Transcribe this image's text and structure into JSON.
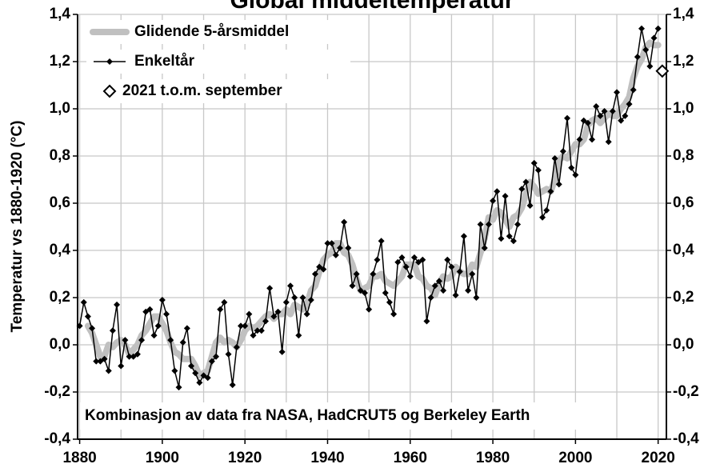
{
  "chart_data": {
    "type": "line",
    "title": "Global middeltemperatur",
    "y_label": "Temperatur vs 1880-1920 (°C)",
    "annotation": "Kombinasjon av data fra NASA, HadCRUT5 og Berkeley Earth",
    "xlim": [
      1879.5,
      2022
    ],
    "xticks": [
      1880,
      1900,
      1920,
      1940,
      1960,
      1980,
      2000,
      2020
    ],
    "xminorticks": [
      1890,
      1910,
      1930,
      1950,
      1970,
      1990,
      2010
    ],
    "ylim": [
      -0.4,
      1.4
    ],
    "yticks": [
      {
        "value": -0.4,
        "label": "-0,4"
      },
      {
        "value": -0.2,
        "label": "-0,2"
      },
      {
        "value": 0,
        "label": "0,0"
      },
      {
        "value": 0.2,
        "label": "0,2"
      },
      {
        "value": 0.4,
        "label": "0,4"
      },
      {
        "value": 0.6,
        "label": "0,6"
      },
      {
        "value": 0.8,
        "label": "0,8"
      },
      {
        "value": 1.0,
        "label": "1,0"
      },
      {
        "value": 1.2,
        "label": "1,2"
      },
      {
        "value": 1.4,
        "label": "1,4"
      }
    ],
    "y2lim": [
      -0.4,
      1.4
    ],
    "y2ticks": [
      {
        "value": -0.4,
        "label": "-0,4"
      },
      {
        "value": -0.2,
        "label": "-0,2"
      },
      {
        "value": 0,
        "label": "0,0"
      },
      {
        "value": 0.2,
        "label": "0,2"
      },
      {
        "value": 0.4,
        "label": "0,4"
      },
      {
        "value": 0.6,
        "label": "0,6"
      },
      {
        "value": 0.8,
        "label": "0,8"
      },
      {
        "value": 1.0,
        "label": "1,0"
      },
      {
        "value": 1.2,
        "label": "1,2"
      },
      {
        "value": 1.4,
        "label": "1,4"
      }
    ],
    "grid": true,
    "legend": "upper left",
    "series": [
      {
        "name": "Glidende 5-årsmiddel",
        "color": "#c0c0c0",
        "style": "thick",
        "x": [
          1882,
          1883,
          1884,
          1885,
          1886,
          1887,
          1888,
          1889,
          1890,
          1891,
          1892,
          1893,
          1894,
          1895,
          1896,
          1897,
          1898,
          1899,
          1900,
          1901,
          1902,
          1903,
          1904,
          1905,
          1906,
          1907,
          1908,
          1909,
          1910,
          1911,
          1912,
          1913,
          1914,
          1915,
          1916,
          1917,
          1918,
          1919,
          1920,
          1921,
          1922,
          1923,
          1924,
          1925,
          1926,
          1927,
          1928,
          1929,
          1930,
          1931,
          1932,
          1933,
          1934,
          1935,
          1936,
          1937,
          1938,
          1939,
          1940,
          1941,
          1942,
          1943,
          1944,
          1945,
          1946,
          1947,
          1948,
          1949,
          1950,
          1951,
          1952,
          1953,
          1954,
          1955,
          1956,
          1957,
          1958,
          1959,
          1960,
          1961,
          1962,
          1963,
          1964,
          1965,
          1966,
          1967,
          1968,
          1969,
          1970,
          1971,
          1972,
          1973,
          1974,
          1975,
          1976,
          1977,
          1978,
          1979,
          1980,
          1981,
          1982,
          1983,
          1984,
          1985,
          1986,
          1987,
          1988,
          1989,
          1990,
          1991,
          1992,
          1993,
          1994,
          1995,
          1996,
          1997,
          1998,
          1999,
          2000,
          2001,
          2002,
          2003,
          2004,
          2005,
          2006,
          2007,
          2008,
          2009,
          2010,
          2011,
          2012,
          2013,
          2014,
          2015,
          2016,
          2017,
          2018,
          2019,
          2020
        ],
        "values": [
          0.08,
          0.05,
          0.0,
          -0.05,
          -0.05,
          0.0,
          -0.01,
          0.01,
          0.02,
          0.0,
          -0.04,
          -0.02,
          0.0,
          0.04,
          0.06,
          0.09,
          0.12,
          0.12,
          0.09,
          0.06,
          0.01,
          -0.03,
          -0.04,
          -0.06,
          -0.06,
          -0.06,
          -0.09,
          -0.13,
          -0.12,
          -0.11,
          -0.05,
          0.01,
          0.03,
          0.01,
          0.02,
          0.01,
          -0.01,
          0.02,
          0.06,
          0.08,
          0.07,
          0.08,
          0.1,
          0.12,
          0.13,
          0.11,
          0.13,
          0.13,
          0.15,
          0.13,
          0.17,
          0.16,
          0.15,
          0.17,
          0.23,
          0.25,
          0.31,
          0.36,
          0.38,
          0.39,
          0.43,
          0.43,
          0.39,
          0.38,
          0.34,
          0.28,
          0.23,
          0.24,
          0.25,
          0.29,
          0.29,
          0.3,
          0.27,
          0.26,
          0.25,
          0.27,
          0.29,
          0.34,
          0.34,
          0.34,
          0.29,
          0.28,
          0.25,
          0.24,
          0.21,
          0.26,
          0.29,
          0.28,
          0.29,
          0.33,
          0.31,
          0.3,
          0.3,
          0.34,
          0.33,
          0.39,
          0.45,
          0.54,
          0.53,
          0.57,
          0.56,
          0.53,
          0.5,
          0.54,
          0.55,
          0.58,
          0.64,
          0.69,
          0.67,
          0.64,
          0.65,
          0.66,
          0.65,
          0.7,
          0.78,
          0.8,
          0.79,
          0.82,
          0.85,
          0.85,
          0.87,
          0.93,
          0.95,
          0.96,
          0.94,
          0.96,
          0.98,
          0.97,
          0.97,
          1.0,
          1.02,
          1.05,
          1.13,
          1.18,
          1.21,
          1.26,
          1.28,
          1.27,
          1.27
        ]
      },
      {
        "name": "Enkeltår",
        "color": "#000000",
        "style": "markers",
        "x": [
          1880,
          1881,
          1882,
          1883,
          1884,
          1885,
          1886,
          1887,
          1888,
          1889,
          1890,
          1891,
          1892,
          1893,
          1894,
          1895,
          1896,
          1897,
          1898,
          1899,
          1900,
          1901,
          1902,
          1903,
          1904,
          1905,
          1906,
          1907,
          1908,
          1909,
          1910,
          1911,
          1912,
          1913,
          1914,
          1915,
          1916,
          1917,
          1918,
          1919,
          1920,
          1921,
          1922,
          1923,
          1924,
          1925,
          1926,
          1927,
          1928,
          1929,
          1930,
          1931,
          1932,
          1933,
          1934,
          1935,
          1936,
          1937,
          1938,
          1939,
          1940,
          1941,
          1942,
          1943,
          1944,
          1945,
          1946,
          1947,
          1948,
          1949,
          1950,
          1951,
          1952,
          1953,
          1954,
          1955,
          1956,
          1957,
          1958,
          1959,
          1960,
          1961,
          1962,
          1963,
          1964,
          1965,
          1966,
          1967,
          1968,
          1969,
          1970,
          1971,
          1972,
          1973,
          1974,
          1975,
          1976,
          1977,
          1978,
          1979,
          1980,
          1981,
          1982,
          1983,
          1984,
          1985,
          1986,
          1987,
          1988,
          1989,
          1990,
          1991,
          1992,
          1993,
          1994,
          1995,
          1996,
          1997,
          1998,
          1999,
          2000,
          2001,
          2002,
          2003,
          2004,
          2005,
          2006,
          2007,
          2008,
          2009,
          2010,
          2011,
          2012,
          2013,
          2014,
          2015,
          2016,
          2017,
          2018,
          2019,
          2020
        ],
        "values": [
          0.08,
          0.18,
          0.12,
          0.07,
          -0.07,
          -0.07,
          -0.06,
          -0.11,
          0.06,
          0.17,
          -0.09,
          0.02,
          -0.05,
          -0.05,
          -0.04,
          0.02,
          0.14,
          0.15,
          0.04,
          0.08,
          0.19,
          0.13,
          0.02,
          -0.11,
          -0.18,
          0.01,
          0.07,
          -0.09,
          -0.12,
          -0.16,
          -0.13,
          -0.14,
          -0.07,
          -0.05,
          0.15,
          0.18,
          -0.04,
          -0.17,
          -0.01,
          0.08,
          0.08,
          0.13,
          0.04,
          0.06,
          0.06,
          0.1,
          0.24,
          0.12,
          0.14,
          -0.03,
          0.18,
          0.25,
          0.2,
          0.04,
          0.2,
          0.13,
          0.19,
          0.3,
          0.33,
          0.32,
          0.43,
          0.43,
          0.38,
          0.41,
          0.52,
          0.41,
          0.25,
          0.3,
          0.23,
          0.22,
          0.15,
          0.3,
          0.36,
          0.44,
          0.22,
          0.18,
          0.13,
          0.35,
          0.37,
          0.33,
          0.29,
          0.37,
          0.35,
          0.36,
          0.1,
          0.2,
          0.25,
          0.27,
          0.23,
          0.36,
          0.33,
          0.21,
          0.31,
          0.46,
          0.23,
          0.3,
          0.2,
          0.51,
          0.41,
          0.51,
          0.61,
          0.65,
          0.45,
          0.63,
          0.46,
          0.44,
          0.51,
          0.66,
          0.69,
          0.59,
          0.77,
          0.74,
          0.54,
          0.57,
          0.65,
          0.79,
          0.68,
          0.82,
          0.96,
          0.75,
          0.72,
          0.87,
          0.95,
          0.94,
          0.87,
          1.01,
          0.97,
          0.99,
          0.86,
          0.99,
          1.07,
          0.95,
          0.97,
          1.02,
          1.08,
          1.22,
          1.34,
          1.25,
          1.18,
          1.3,
          1.34
        ]
      },
      {
        "name": "2021 t.o.m. september",
        "color": "#000000",
        "style": "open",
        "x": [
          2021
        ],
        "values": [
          1.16
        ]
      }
    ]
  }
}
